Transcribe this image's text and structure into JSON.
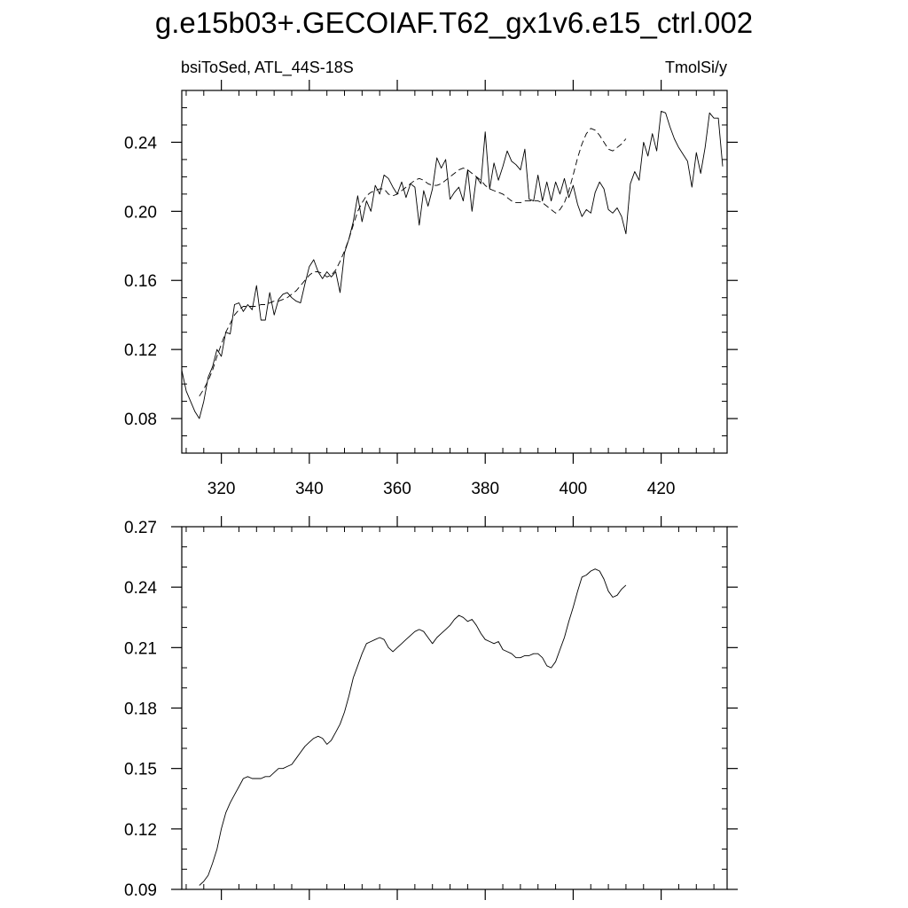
{
  "title": "g.e15b03+.GECOIAF.T62_gx1v6.e15_ctrl.002",
  "chart_data": [
    {
      "type": "line",
      "left_label": "bsiToSed, ATL_44S-18S",
      "right_label": "TmolSi/y",
      "xlim": [
        311,
        435
      ],
      "ylim": [
        0.06,
        0.27
      ],
      "x_ticks": [
        320,
        340,
        360,
        380,
        400,
        420
      ],
      "x_tick_labels": [
        "320",
        "340",
        "360",
        "380",
        "400",
        "420"
      ],
      "y_ticks": [
        0.08,
        0.12,
        0.16,
        0.2,
        0.24
      ],
      "y_tick_labels": [
        "0.08",
        "0.12",
        "0.16",
        "0.20",
        "0.24"
      ],
      "series": [
        {
          "style": "solid",
          "x_start": 311,
          "x_step": 1,
          "values": [
            0.108,
            0.096,
            0.09,
            0.084,
            0.08,
            0.09,
            0.104,
            0.11,
            0.12,
            0.116,
            0.13,
            0.129,
            0.146,
            0.147,
            0.142,
            0.146,
            0.143,
            0.157,
            0.137,
            0.137,
            0.153,
            0.14,
            0.149,
            0.152,
            0.153,
            0.15,
            0.148,
            0.147,
            0.158,
            0.168,
            0.172,
            0.165,
            0.161,
            0.165,
            0.162,
            0.165,
            0.153,
            0.176,
            0.184,
            0.194,
            0.209,
            0.194,
            0.206,
            0.2,
            0.215,
            0.21,
            0.221,
            0.219,
            0.214,
            0.21,
            0.217,
            0.208,
            0.216,
            0.214,
            0.192,
            0.212,
            0.203,
            0.213,
            0.231,
            0.225,
            0.23,
            0.207,
            0.211,
            0.214,
            0.206,
            0.224,
            0.2,
            0.22,
            0.216,
            0.246,
            0.213,
            0.228,
            0.218,
            0.226,
            0.235,
            0.229,
            0.227,
            0.224,
            0.236,
            0.207,
            0.206,
            0.221,
            0.206,
            0.217,
            0.206,
            0.217,
            0.21,
            0.219,
            0.208,
            0.215,
            0.204,
            0.197,
            0.201,
            0.199,
            0.211,
            0.217,
            0.213,
            0.201,
            0.199,
            0.202,
            0.197,
            0.187,
            0.216,
            0.223,
            0.218,
            0.24,
            0.232,
            0.245,
            0.235,
            0.258,
            0.257,
            0.249,
            0.242,
            0.237,
            0.233,
            0.229,
            0.214,
            0.234,
            0.222,
            0.237,
            0.257,
            0.254,
            0.254,
            0.226
          ]
        },
        {
          "style": "dashed",
          "x_start": 315,
          "x_step": 1,
          "values": [
            0.093,
            0.097,
            0.102,
            0.108,
            0.116,
            0.123,
            0.13,
            0.135,
            0.14,
            0.143,
            0.145,
            0.145,
            0.145,
            0.145,
            0.146,
            0.146,
            0.147,
            0.148,
            0.148,
            0.149,
            0.15,
            0.152,
            0.154,
            0.157,
            0.16,
            0.163,
            0.165,
            0.165,
            0.164,
            0.162,
            0.163,
            0.166,
            0.171,
            0.177,
            0.184,
            0.192,
            0.2,
            0.205,
            0.209,
            0.211,
            0.212,
            0.213,
            0.213,
            0.21,
            0.209,
            0.21,
            0.212,
            0.214,
            0.216,
            0.218,
            0.219,
            0.218,
            0.216,
            0.215,
            0.215,
            0.216,
            0.218,
            0.22,
            0.222,
            0.224,
            0.225,
            0.224,
            0.222,
            0.22,
            0.218,
            0.215,
            0.213,
            0.212,
            0.211,
            0.21,
            0.208,
            0.206,
            0.205,
            0.205,
            0.206,
            0.206,
            0.206,
            0.206,
            0.205,
            0.203,
            0.201,
            0.199,
            0.201,
            0.205,
            0.212,
            0.221,
            0.231,
            0.239,
            0.245,
            0.248,
            0.247,
            0.244,
            0.24,
            0.236,
            0.235,
            0.237,
            0.239,
            0.242
          ]
        }
      ]
    },
    {
      "type": "line",
      "xlim": [
        311,
        435
      ],
      "ylim": [
        0.09,
        0.27
      ],
      "x_ticks": [
        320,
        340,
        360,
        380,
        400,
        420
      ],
      "y_ticks": [
        0.09,
        0.12,
        0.15,
        0.18,
        0.21,
        0.24,
        0.27
      ],
      "y_tick_labels": [
        "0.09",
        "0.12",
        "0.15",
        "0.18",
        "0.21",
        "0.24",
        "0.27"
      ],
      "series": [
        {
          "style": "solid",
          "x_start": 315,
          "x_step": 1,
          "values": [
            0.092,
            0.094,
            0.097,
            0.103,
            0.11,
            0.12,
            0.128,
            0.133,
            0.137,
            0.141,
            0.145,
            0.146,
            0.145,
            0.145,
            0.145,
            0.146,
            0.146,
            0.148,
            0.15,
            0.15,
            0.151,
            0.152,
            0.155,
            0.158,
            0.161,
            0.163,
            0.165,
            0.166,
            0.165,
            0.162,
            0.164,
            0.168,
            0.172,
            0.178,
            0.186,
            0.195,
            0.201,
            0.207,
            0.212,
            0.213,
            0.214,
            0.215,
            0.214,
            0.21,
            0.208,
            0.21,
            0.212,
            0.214,
            0.216,
            0.218,
            0.219,
            0.218,
            0.215,
            0.212,
            0.215,
            0.217,
            0.219,
            0.221,
            0.224,
            0.226,
            0.225,
            0.223,
            0.224,
            0.221,
            0.217,
            0.214,
            0.213,
            0.212,
            0.213,
            0.209,
            0.208,
            0.207,
            0.205,
            0.205,
            0.206,
            0.206,
            0.207,
            0.207,
            0.205,
            0.201,
            0.2,
            0.203,
            0.209,
            0.215,
            0.223,
            0.23,
            0.238,
            0.245,
            0.246,
            0.248,
            0.249,
            0.248,
            0.244,
            0.238,
            0.235,
            0.236,
            0.239,
            0.241
          ]
        }
      ]
    }
  ]
}
